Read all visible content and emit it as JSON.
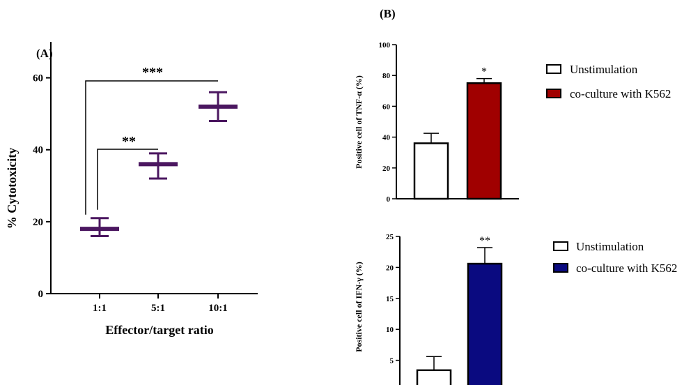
{
  "panel_labels": {
    "a": "(A)",
    "b": "(B)"
  },
  "chart_data": [
    {
      "type": "scatter",
      "panel": "(A)",
      "xlabel": "Effector/target ratio",
      "ylabel": "% Cytotoxicity",
      "categories": [
        "1:1",
        "5:1",
        "10:1"
      ],
      "yticks": [
        "0",
        "20",
        "40",
        "60"
      ],
      "ylim": [
        0,
        70
      ],
      "series": [
        {
          "values": [
            18,
            36,
            52
          ],
          "err_low": [
            16,
            32,
            48
          ],
          "err_high": [
            21,
            39,
            56
          ]
        }
      ],
      "color": "#4b1760",
      "annotations": [
        {
          "from": "1:1",
          "to": "5:1",
          "label": "**"
        },
        {
          "from": "1:1",
          "to": "10:1",
          "label": "***"
        }
      ]
    },
    {
      "type": "bar",
      "panel": "(B)",
      "ylabel": "Positive cell of TNF-α (%)",
      "yticks": [
        "0",
        "20",
        "40",
        "60",
        "80",
        "100"
      ],
      "ylim": [
        0,
        100
      ],
      "categories": [
        "Unstimulation",
        "co-culture with K562"
      ],
      "values": [
        36,
        75
      ],
      "errors": [
        6.5,
        3
      ],
      "colors": [
        "#ffffff",
        "#a00000"
      ],
      "significance": [
        "",
        "*"
      ],
      "legend": [
        "Unstimulation",
        "co-culture with K562"
      ],
      "legend_position": "right"
    },
    {
      "type": "bar",
      "panel": "(B)",
      "ylabel": "Positive cell of IFN-γ  (%)",
      "yticks": [
        "5",
        "10",
        "15",
        "20",
        "25"
      ],
      "ylim": [
        0,
        25
      ],
      "categories": [
        "Unstimulation",
        "co-culture with K562"
      ],
      "values": [
        3.4,
        20.6
      ],
      "errors": [
        2.2,
        2.6
      ],
      "colors": [
        "#ffffff",
        "#0a0a80"
      ],
      "significance": [
        "",
        "**"
      ],
      "legend": [
        "Unstimulation",
        "co-culture with K562"
      ],
      "legend_position": "right"
    }
  ]
}
